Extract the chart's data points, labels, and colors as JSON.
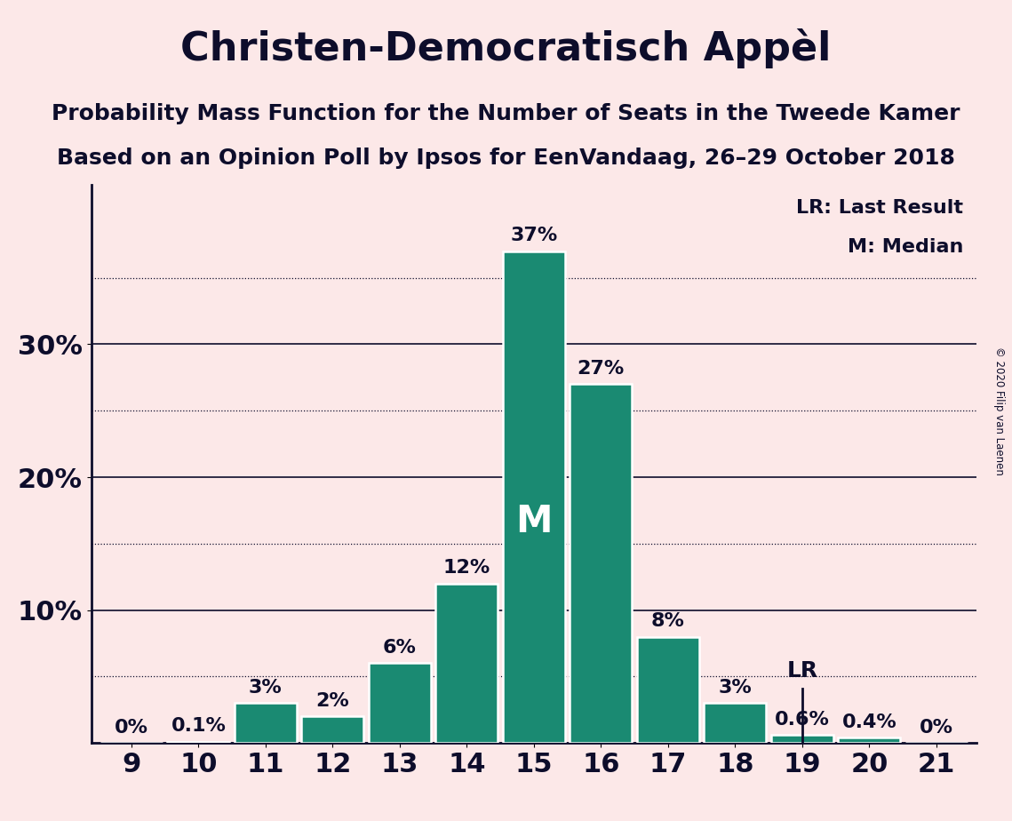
{
  "title": "Christen-Democratisch Appèl",
  "subtitle1": "Probability Mass Function for the Number of Seats in the Tweede Kamer",
  "subtitle2": "Based on an Opinion Poll by Ipsos for EenVandaag, 26–29 October 2018",
  "copyright": "© 2020 Filip van Laenen",
  "seats": [
    9,
    10,
    11,
    12,
    13,
    14,
    15,
    16,
    17,
    18,
    19,
    20,
    21
  ],
  "probabilities": [
    0.0,
    0.1,
    3.0,
    2.0,
    6.0,
    12.0,
    37.0,
    27.0,
    8.0,
    3.0,
    0.6,
    0.4,
    0.0
  ],
  "labels": [
    "0%",
    "0.1%",
    "3%",
    "2%",
    "6%",
    "12%",
    "37%",
    "27%",
    "8%",
    "3%",
    "0.6%",
    "0.4%",
    "0%"
  ],
  "bar_color": "#1a8a72",
  "background_color": "#fce8e8",
  "bar_edge_color": "#ffffff",
  "text_color": "#0d0d2b",
  "median_seat": 15,
  "lr_seat": 19,
  "ylim": [
    0,
    42
  ],
  "yticks_solid": [
    10,
    20,
    30
  ],
  "yticks_dotted": [
    5,
    15,
    25,
    35
  ],
  "title_fontsize": 32,
  "subtitle_fontsize": 18,
  "label_fontsize": 16,
  "axis_fontsize": 22,
  "bar_width": 0.93
}
